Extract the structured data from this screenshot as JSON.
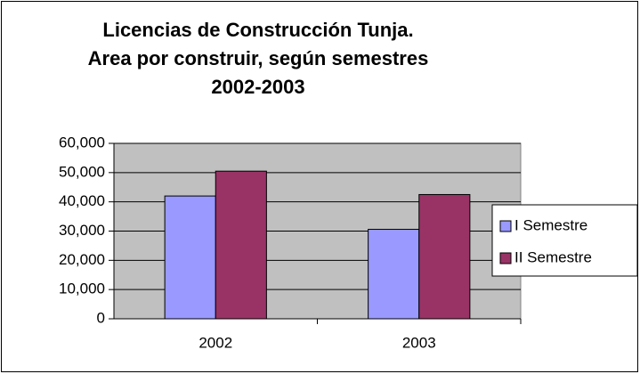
{
  "chart_data": {
    "type": "bar",
    "title": [
      "Licencias de Construcción Tunja.",
      "Area por construir, según semestres",
      "2002-2003"
    ],
    "categories": [
      "2002",
      "2003"
    ],
    "series": [
      {
        "name": "I Semestre",
        "color": "#9999ff",
        "values": [
          42000,
          30600
        ]
      },
      {
        "name": "II Semestre",
        "color": "#993366",
        "values": [
          50500,
          42500
        ]
      }
    ],
    "ylim": [
      0,
      60000
    ],
    "yticks": [
      0,
      {
        "value": 10000,
        "label": "10,000"
      },
      {
        "value": 20000,
        "label": "20,000"
      },
      {
        "value": 30000,
        "label": "30,000"
      },
      {
        "value": 40000,
        "label": "40,000"
      },
      {
        "value": 50000,
        "label": "50,000"
      },
      {
        "value": 60000,
        "label": "60,000"
      }
    ],
    "grid": true,
    "legend": "right"
  }
}
